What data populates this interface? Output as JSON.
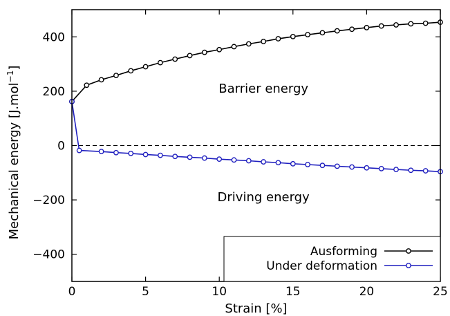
{
  "chart_data": {
    "type": "line",
    "xlabel": "Strain [%]",
    "ylabel_main": "Mechanical energy [J.mol",
    "ylabel_sup": "−1",
    "ylabel_close": "]",
    "xlim": [
      0,
      25
    ],
    "ylim": [
      -500,
      500
    ],
    "xticks": [
      0,
      5,
      10,
      15,
      20,
      25
    ],
    "xtick_labels": [
      "0",
      "5",
      "10",
      "15",
      "20",
      "25"
    ],
    "yticks": [
      -400,
      -200,
      0,
      200,
      400
    ],
    "ytick_labels": [
      "−400",
      "−200",
      "0",
      "200",
      "400"
    ],
    "grid": false,
    "legend_position": "bottom-right",
    "reference_line": {
      "y": 0,
      "style": "dashed",
      "color": "#000000"
    },
    "annotations": [
      {
        "text": "Barrier energy",
        "x": 13,
        "y": 195
      },
      {
        "text": "Driving energy",
        "x": 13,
        "y": -205
      }
    ],
    "series": [
      {
        "name": "Ausforming",
        "color": "#000000",
        "x": [
          0,
          1,
          2,
          3,
          4,
          5,
          6,
          7,
          8,
          9,
          10,
          11,
          12,
          13,
          14,
          15,
          16,
          17,
          18,
          19,
          20,
          21,
          22,
          23,
          24,
          25
        ],
        "y": [
          162,
          222,
          242,
          258,
          275,
          290,
          305,
          318,
          331,
          343,
          353,
          364,
          374,
          383,
          393,
          401,
          408,
          415,
          422,
          428,
          434,
          440,
          444,
          448,
          450,
          454
        ]
      },
      {
        "name": "Under deformation",
        "color": "#1f1fbf",
        "x": [
          0,
          0.5,
          2,
          3,
          4,
          5,
          6,
          7,
          8,
          9,
          10,
          11,
          12,
          13,
          14,
          15,
          16,
          17,
          18,
          19,
          20,
          21,
          22,
          23,
          24,
          25
        ],
        "y": [
          162,
          -18,
          -22,
          -26,
          -29,
          -33,
          -36,
          -40,
          -43,
          -46,
          -50,
          -53,
          -56,
          -60,
          -63,
          -67,
          -70,
          -73,
          -76,
          -79,
          -82,
          -85,
          -88,
          -91,
          -93,
          -96
        ]
      }
    ]
  }
}
